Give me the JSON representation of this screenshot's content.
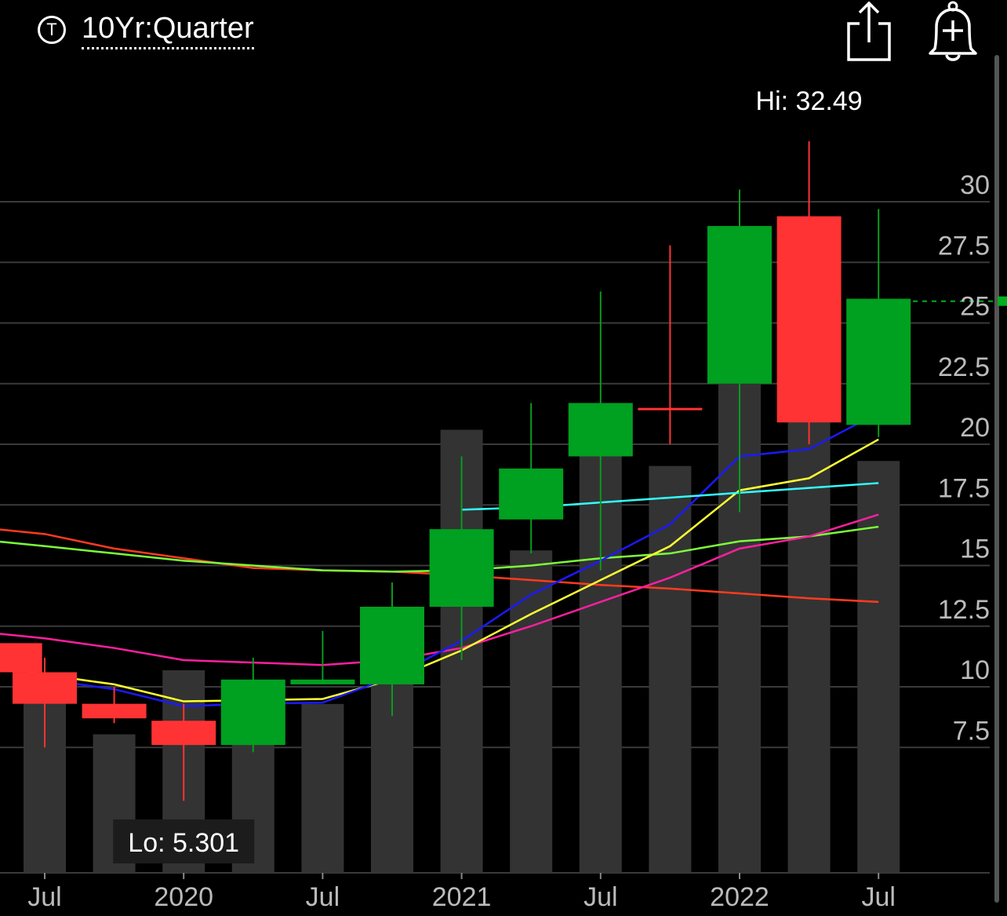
{
  "header": {
    "ticker_icon_letter": "T",
    "title": "10Yr:Quarter",
    "share_icon": "share-icon",
    "alert_icon": "bell-plus-icon"
  },
  "chart_data": {
    "type": "candlestick",
    "interval": "Quarter",
    "period": "10Yr",
    "hi_label": "Hi: 32.49",
    "lo_label": "Lo: 5.301",
    "ylim": [
      3,
      34
    ],
    "yticks": [
      7.5,
      10,
      12.5,
      15,
      17.5,
      20,
      22.5,
      25,
      27.5,
      30
    ],
    "ytick_labels": [
      "7.5",
      "10",
      "12.5",
      "15",
      "17.5",
      "20",
      "22.5",
      "25",
      "27.5",
      "30"
    ],
    "xtick_labels": [
      {
        "label": "Jul",
        "slot": 0
      },
      {
        "label": "2020",
        "slot": 2
      },
      {
        "label": "Jul",
        "slot": 4
      },
      {
        "label": "2021",
        "slot": 6
      },
      {
        "label": "Jul",
        "slot": 8
      },
      {
        "label": "2022",
        "slot": 10
      },
      {
        "label": "Jul",
        "slot": 12
      }
    ],
    "current_price": 25.9,
    "candles": [
      {
        "slot": -0.5,
        "open": 11.8,
        "close": 10.6,
        "high": 11.8,
        "low": 10.6
      },
      {
        "slot": 0,
        "open": 10.6,
        "close": 9.3,
        "high": 11.2,
        "low": 7.5
      },
      {
        "slot": 1,
        "open": 9.3,
        "close": 8.7,
        "high": 10.0,
        "low": 8.5
      },
      {
        "slot": 2,
        "open": 8.6,
        "close": 7.6,
        "high": 9.3,
        "low": 5.301
      },
      {
        "slot": 3,
        "open": 7.6,
        "close": 10.3,
        "high": 11.2,
        "low": 7.3
      },
      {
        "slot": 4,
        "open": 10.1,
        "close": 10.3,
        "high": 12.3,
        "low": 10.1
      },
      {
        "slot": 5,
        "open": 10.1,
        "close": 13.3,
        "high": 14.3,
        "low": 8.8
      },
      {
        "slot": 6,
        "open": 13.3,
        "close": 16.5,
        "high": 19.5,
        "low": 11.1
      },
      {
        "slot": 7,
        "open": 16.9,
        "close": 19.0,
        "high": 21.7,
        "low": 15.5
      },
      {
        "slot": 8,
        "open": 19.5,
        "close": 21.7,
        "high": 26.3,
        "low": 14.8
      },
      {
        "slot": 9,
        "open": 21.5,
        "close": 21.5,
        "high": 28.2,
        "low": 20.0
      },
      {
        "slot": 10,
        "open": 22.5,
        "close": 29.0,
        "high": 30.5,
        "low": 17.2
      },
      {
        "slot": 11,
        "open": 29.4,
        "close": 20.9,
        "high": 32.49,
        "low": 20.0
      },
      {
        "slot": 12,
        "open": 20.8,
        "close": 26.0,
        "high": 29.7,
        "low": 20.3
      }
    ],
    "volume": {
      "max": 1000,
      "values": [
        {
          "slot": 0,
          "value": 420
        },
        {
          "slot": 1,
          "value": 333
        },
        {
          "slot": 2,
          "value": 487
        },
        {
          "slot": 3,
          "value": 388
        },
        {
          "slot": 4,
          "value": 406
        },
        {
          "slot": 5,
          "value": 498
        },
        {
          "slot": 6,
          "value": 1065
        },
        {
          "slot": 7,
          "value": 775
        },
        {
          "slot": 8,
          "value": 1034
        },
        {
          "slot": 9,
          "value": 978
        },
        {
          "slot": 10,
          "value": 1350
        },
        {
          "slot": 11,
          "value": 1210
        },
        {
          "slot": 12,
          "value": 990
        }
      ]
    },
    "series": [
      {
        "color": "#ff3b1e",
        "x": [
          -0.7,
          0,
          1,
          2,
          3,
          4,
          5,
          6,
          7,
          8,
          9,
          10,
          11,
          12
        ],
        "y": [
          16.5,
          16.3,
          15.7,
          15.3,
          14.9,
          14.8,
          14.75,
          14.6,
          14.4,
          14.2,
          14.05,
          13.85,
          13.65,
          13.5
        ]
      },
      {
        "color": "#7cff3a",
        "x": [
          -0.7,
          0,
          1,
          2,
          3,
          4,
          5,
          6,
          7,
          8,
          9,
          10,
          11,
          12
        ],
        "y": [
          16.0,
          15.8,
          15.5,
          15.2,
          15.0,
          14.8,
          14.75,
          14.8,
          15.0,
          15.3,
          15.5,
          16.0,
          16.2,
          16.6
        ]
      },
      {
        "color": "#ff1fa0",
        "x": [
          -0.7,
          0,
          1,
          2,
          3,
          4,
          5,
          6,
          7,
          8,
          9,
          10,
          11,
          12
        ],
        "y": [
          12.2,
          12.0,
          11.6,
          11.1,
          11.0,
          10.9,
          11.1,
          11.6,
          12.5,
          13.5,
          14.5,
          15.7,
          16.2,
          17.1
        ]
      },
      {
        "color": "#ffff33",
        "x": [
          -0.7,
          0,
          1,
          2,
          3,
          4,
          5,
          6,
          7,
          8,
          9,
          10,
          11,
          12
        ],
        "y": [
          10.9,
          10.5,
          10.1,
          9.4,
          9.45,
          9.5,
          10.3,
          11.5,
          13.0,
          14.4,
          15.8,
          18.1,
          18.6,
          20.2
        ]
      },
      {
        "color": "#1a1aff",
        "x": [
          -0.7,
          0,
          1,
          2,
          3,
          4,
          5,
          6,
          7,
          8,
          9,
          10,
          11,
          12
        ],
        "y": [
          10.8,
          10.3,
          9.9,
          9.2,
          9.3,
          9.35,
          10.4,
          11.9,
          13.8,
          15.2,
          16.7,
          19.5,
          19.8,
          21.3
        ]
      },
      {
        "color": "#33ffff",
        "x": [
          6,
          7,
          8,
          9,
          10,
          11,
          12
        ],
        "y": [
          17.3,
          17.4,
          17.6,
          17.8,
          18.0,
          18.2,
          18.4
        ]
      }
    ]
  }
}
